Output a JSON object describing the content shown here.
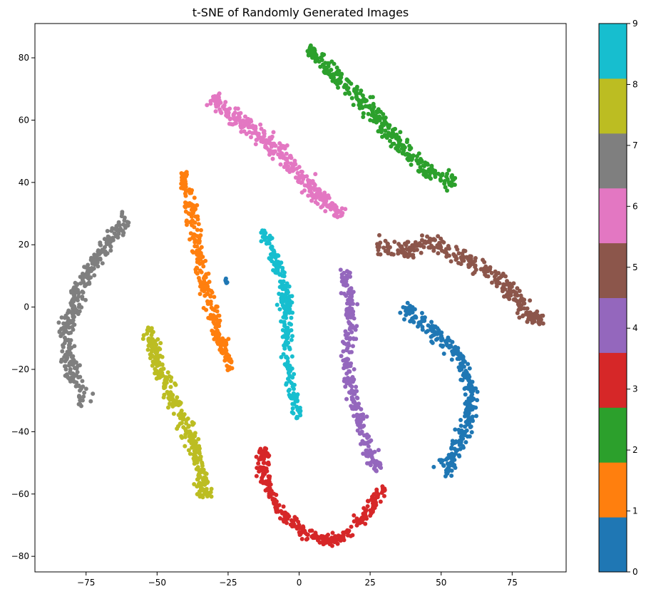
{
  "chart_data": {
    "type": "scatter",
    "title": "t-SNE of Randomly Generated Images",
    "xlabel": "",
    "ylabel": "",
    "xlim": [
      -93,
      94
    ],
    "ylim": [
      -85,
      91
    ],
    "x_ticks": [
      -75,
      -50,
      -25,
      0,
      25,
      50,
      75
    ],
    "y_ticks": [
      -80,
      -60,
      -40,
      -20,
      0,
      20,
      40,
      60,
      80
    ],
    "grid": false,
    "colorbar": {
      "range": [
        0,
        9
      ],
      "ticks": [
        0,
        1,
        2,
        3,
        4,
        5,
        6,
        7,
        8,
        9
      ],
      "levels": 10
    },
    "clusters": [
      {
        "label": 0,
        "color": "#1f77b4",
        "path": [
          [
            36,
            0
          ],
          [
            45,
            -6
          ],
          [
            53,
            -12
          ],
          [
            59,
            -20
          ],
          [
            61,
            -30
          ],
          [
            58,
            -41
          ],
          [
            54,
            -48
          ],
          [
            50,
            -53
          ]
        ],
        "halfwidth": 2.2,
        "count": 300
      },
      {
        "label": 0,
        "color": "#1f77b4",
        "path": [
          [
            -26,
            9
          ],
          [
            -25,
            7
          ]
        ],
        "halfwidth": 0.3,
        "count": 8
      },
      {
        "label": 1,
        "color": "#ff7f0e",
        "path": [
          [
            -41,
            43
          ],
          [
            -38,
            32
          ],
          [
            -36,
            20
          ],
          [
            -34,
            10
          ],
          [
            -31,
            0
          ],
          [
            -28,
            -10
          ],
          [
            -24,
            -20
          ]
        ],
        "halfwidth": 2.0,
        "count": 260
      },
      {
        "label": 2,
        "color": "#2ca02c",
        "path": [
          [
            3,
            83
          ],
          [
            10,
            77
          ],
          [
            18,
            70
          ],
          [
            26,
            62
          ],
          [
            34,
            54
          ],
          [
            42,
            46
          ],
          [
            48,
            42
          ],
          [
            55,
            40
          ]
        ],
        "halfwidth": 2.6,
        "count": 320
      },
      {
        "label": 3,
        "color": "#d62728",
        "path": [
          [
            -13,
            -45
          ],
          [
            -12,
            -55
          ],
          [
            -8,
            -63
          ],
          [
            -3,
            -69
          ],
          [
            3,
            -73
          ],
          [
            10,
            -75
          ],
          [
            17,
            -73
          ],
          [
            24,
            -67
          ],
          [
            29,
            -58
          ]
        ],
        "halfwidth": 2.0,
        "count": 300
      },
      {
        "label": 4,
        "color": "#9467bd",
        "path": [
          [
            16,
            12
          ],
          [
            18,
            2
          ],
          [
            18,
            -8
          ],
          [
            17,
            -18
          ],
          [
            19,
            -28
          ],
          [
            22,
            -38
          ],
          [
            25,
            -46
          ],
          [
            28,
            -53
          ]
        ],
        "halfwidth": 2.0,
        "count": 260
      },
      {
        "label": 5,
        "color": "#8c564b",
        "path": [
          [
            27,
            20
          ],
          [
            37,
            18
          ],
          [
            47,
            21
          ],
          [
            55,
            17
          ],
          [
            62,
            14
          ],
          [
            70,
            10
          ],
          [
            77,
            3
          ],
          [
            82,
            -4
          ],
          [
            86,
            -4
          ]
        ],
        "halfwidth": 2.4,
        "count": 300
      },
      {
        "label": 6,
        "color": "#e377c2",
        "path": [
          [
            -31,
            67
          ],
          [
            -25,
            62
          ],
          [
            -18,
            58
          ],
          [
            -11,
            54
          ],
          [
            -5,
            48
          ],
          [
            1,
            42
          ],
          [
            5,
            37
          ],
          [
            10,
            33
          ],
          [
            16,
            30
          ]
        ],
        "halfwidth": 2.6,
        "count": 320
      },
      {
        "label": 7,
        "color": "#7f7f7f",
        "path": [
          [
            -60,
            29
          ],
          [
            -68,
            20
          ],
          [
            -74,
            12
          ],
          [
            -80,
            0
          ],
          [
            -82,
            -10
          ],
          [
            -80,
            -20
          ],
          [
            -75,
            -32
          ]
        ],
        "halfwidth": 2.4,
        "count": 320
      },
      {
        "label": 8,
        "color": "#bcbd22",
        "path": [
          [
            -53,
            -6
          ],
          [
            -50,
            -17
          ],
          [
            -46,
            -26
          ],
          [
            -42,
            -34
          ],
          [
            -38,
            -42
          ],
          [
            -35,
            -50
          ],
          [
            -33,
            -61
          ]
        ],
        "halfwidth": 2.4,
        "count": 300
      },
      {
        "label": 9,
        "color": "#17becf",
        "path": [
          [
            -13,
            25
          ],
          [
            -8,
            15
          ],
          [
            -5,
            5
          ],
          [
            -4,
            -5
          ],
          [
            -4,
            -15
          ],
          [
            -3,
            -25
          ],
          [
            0,
            -35
          ]
        ],
        "halfwidth": 1.8,
        "count": 260
      }
    ]
  }
}
